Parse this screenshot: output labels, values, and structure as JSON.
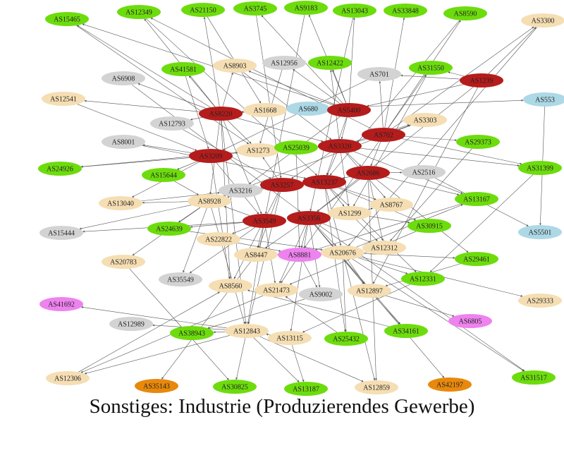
{
  "caption": "Sonstiges: Industrie (Produzierendes Gewerbe)",
  "colors": {
    "darkred": "#b51c1c",
    "green": "#6ddc0d",
    "tan": "#f5deb3",
    "gray": "#d3d3d3",
    "lightblue": "#add8e6",
    "violet": "#ee82ee",
    "orange": "#e8890c",
    "edge": "#555555"
  },
  "nodes": [
    {
      "id": "AS15465",
      "c": "green"
    },
    {
      "id": "AS12349",
      "c": "green"
    },
    {
      "id": "AS21150",
      "c": "green"
    },
    {
      "id": "AS3745",
      "c": "green"
    },
    {
      "id": "AS9183",
      "c": "green"
    },
    {
      "id": "AS13043",
      "c": "green"
    },
    {
      "id": "AS33848",
      "c": "green"
    },
    {
      "id": "AS8590",
      "c": "green"
    },
    {
      "id": "AS3300",
      "c": "tan"
    },
    {
      "id": "AS41581",
      "c": "green"
    },
    {
      "id": "AS8903",
      "c": "tan"
    },
    {
      "id": "AS12956",
      "c": "gray"
    },
    {
      "id": "AS12422",
      "c": "green"
    },
    {
      "id": "AS701",
      "c": "gray"
    },
    {
      "id": "AS31550",
      "c": "green"
    },
    {
      "id": "AS6908",
      "c": "gray"
    },
    {
      "id": "AS1239",
      "c": "darkred"
    },
    {
      "id": "AS12541",
      "c": "tan"
    },
    {
      "id": "AS8220",
      "c": "darkred"
    },
    {
      "id": "AS1668",
      "c": "tan"
    },
    {
      "id": "AS680",
      "c": "lightblue"
    },
    {
      "id": "AS5400",
      "c": "darkred"
    },
    {
      "id": "AS553",
      "c": "lightblue"
    },
    {
      "id": "AS12793",
      "c": "gray"
    },
    {
      "id": "AS3303",
      "c": "tan"
    },
    {
      "id": "AS702",
      "c": "darkred"
    },
    {
      "id": "AS8001",
      "c": "gray"
    },
    {
      "id": "AS29373",
      "c": "green"
    },
    {
      "id": "AS1273",
      "c": "tan"
    },
    {
      "id": "AS25039",
      "c": "green"
    },
    {
      "id": "AS3320",
      "c": "darkred"
    },
    {
      "id": "AS3209",
      "c": "darkred"
    },
    {
      "id": "AS24926",
      "c": "green"
    },
    {
      "id": "AS31399",
      "c": "green"
    },
    {
      "id": "AS15644",
      "c": "green"
    },
    {
      "id": "AS2686",
      "c": "darkred"
    },
    {
      "id": "AS2516",
      "c": "gray"
    },
    {
      "id": "AS3257",
      "c": "darkred"
    },
    {
      "id": "AS13237",
      "c": "darkred"
    },
    {
      "id": "AS3216",
      "c": "gray"
    },
    {
      "id": "AS13040",
      "c": "tan"
    },
    {
      "id": "AS8928",
      "c": "tan"
    },
    {
      "id": "AS13167",
      "c": "green"
    },
    {
      "id": "AS8767",
      "c": "tan"
    },
    {
      "id": "AS1299",
      "c": "tan"
    },
    {
      "id": "AS5501",
      "c": "lightblue"
    },
    {
      "id": "AS15444",
      "c": "gray"
    },
    {
      "id": "AS3549",
      "c": "darkred"
    },
    {
      "id": "AS3356",
      "c": "darkred"
    },
    {
      "id": "AS24639",
      "c": "green"
    },
    {
      "id": "AS30915",
      "c": "green"
    },
    {
      "id": "AS22822",
      "c": "tan"
    },
    {
      "id": "AS12312",
      "c": "tan"
    },
    {
      "id": "AS8447",
      "c": "tan"
    },
    {
      "id": "AS8881",
      "c": "violet"
    },
    {
      "id": "AS20676",
      "c": "tan"
    },
    {
      "id": "AS20783",
      "c": "tan"
    },
    {
      "id": "AS29461",
      "c": "green"
    },
    {
      "id": "AS35549",
      "c": "gray"
    },
    {
      "id": "AS12331",
      "c": "green"
    },
    {
      "id": "AS8560",
      "c": "tan"
    },
    {
      "id": "AS21473",
      "c": "tan"
    },
    {
      "id": "AS9002",
      "c": "gray"
    },
    {
      "id": "AS12897",
      "c": "tan"
    },
    {
      "id": "AS29333",
      "c": "tan"
    },
    {
      "id": "AS41692",
      "c": "violet"
    },
    {
      "id": "AS6805",
      "c": "violet"
    },
    {
      "id": "AS12989",
      "c": "gray"
    },
    {
      "id": "AS38943",
      "c": "green"
    },
    {
      "id": "AS12843",
      "c": "tan"
    },
    {
      "id": "AS13115",
      "c": "tan"
    },
    {
      "id": "AS34161",
      "c": "green"
    },
    {
      "id": "AS25432",
      "c": "green"
    },
    {
      "id": "AS12306",
      "c": "tan"
    },
    {
      "id": "AS35143",
      "c": "orange"
    },
    {
      "id": "AS30825",
      "c": "green"
    },
    {
      "id": "AS13187",
      "c": "green"
    },
    {
      "id": "AS12859",
      "c": "tan"
    },
    {
      "id": "AS42197",
      "c": "orange"
    },
    {
      "id": "AS31517",
      "c": "green"
    }
  ],
  "edges": [
    [
      "AS8220",
      "AS15465"
    ],
    [
      "AS8220",
      "AS12349"
    ],
    [
      "AS8220",
      "AS21150"
    ],
    [
      "AS8220",
      "AS41581"
    ],
    [
      "AS8220",
      "AS8903"
    ],
    [
      "AS8220",
      "AS12541"
    ],
    [
      "AS8220",
      "AS6908"
    ],
    [
      "AS8220",
      "AS12793"
    ],
    [
      "AS8220",
      "AS1668"
    ],
    [
      "AS8220",
      "AS680"
    ],
    [
      "AS8220",
      "AS3320"
    ],
    [
      "AS8220",
      "AS1273"
    ],
    [
      "AS8220",
      "AS8928"
    ],
    [
      "AS8220",
      "AS3549"
    ],
    [
      "AS8220",
      "AS12843"
    ],
    [
      "AS8220",
      "AS8560"
    ],
    [
      "AS5400",
      "AS3745"
    ],
    [
      "AS5400",
      "AS9183"
    ],
    [
      "AS5400",
      "AS13043"
    ],
    [
      "AS5400",
      "AS12956"
    ],
    [
      "AS5400",
      "AS12422"
    ],
    [
      "AS5400",
      "AS680"
    ],
    [
      "AS5400",
      "AS3320"
    ],
    [
      "AS5400",
      "AS13237"
    ],
    [
      "AS5400",
      "AS8903"
    ],
    [
      "AS5400",
      "AS15465"
    ],
    [
      "AS5400",
      "AS3216"
    ],
    [
      "AS702",
      "AS33848"
    ],
    [
      "AS702",
      "AS8590"
    ],
    [
      "AS702",
      "AS3300"
    ],
    [
      "AS702",
      "AS701"
    ],
    [
      "AS702",
      "AS31550"
    ],
    [
      "AS702",
      "AS3303"
    ],
    [
      "AS702",
      "AS29373"
    ],
    [
      "AS702",
      "AS3320"
    ],
    [
      "AS702",
      "AS2686"
    ],
    [
      "AS702",
      "AS12349"
    ],
    [
      "AS702",
      "AS8881"
    ],
    [
      "AS702",
      "AS31399"
    ],
    [
      "AS1239",
      "AS701"
    ],
    [
      "AS1239",
      "AS31550"
    ],
    [
      "AS1239",
      "AS5400"
    ],
    [
      "AS1239",
      "AS3300"
    ],
    [
      "AS1239",
      "AS3356"
    ],
    [
      "AS1239",
      "AS12897"
    ],
    [
      "AS3320",
      "AS12422"
    ],
    [
      "AS3320",
      "AS1273"
    ],
    [
      "AS3320",
      "AS25039"
    ],
    [
      "AS3320",
      "AS3257"
    ],
    [
      "AS3320",
      "AS13237"
    ],
    [
      "AS3320",
      "AS2686"
    ],
    [
      "AS3320",
      "AS8767"
    ],
    [
      "AS3320",
      "AS1299"
    ],
    [
      "AS3320",
      "AS3303"
    ],
    [
      "AS3320",
      "AS31399"
    ],
    [
      "AS3320",
      "AS13167"
    ],
    [
      "AS3209",
      "AS1273"
    ],
    [
      "AS3209",
      "AS8001"
    ],
    [
      "AS3209",
      "AS24926"
    ],
    [
      "AS3209",
      "AS15644"
    ],
    [
      "AS3209",
      "AS3549"
    ],
    [
      "AS3209",
      "AS8560"
    ],
    [
      "AS3209",
      "AS13040"
    ],
    [
      "AS2686",
      "AS13237"
    ],
    [
      "AS2686",
      "AS2516"
    ],
    [
      "AS2686",
      "AS3356"
    ],
    [
      "AS2686",
      "AS13167"
    ],
    [
      "AS2686",
      "AS29461"
    ],
    [
      "AS2686",
      "AS12312"
    ],
    [
      "AS2686",
      "AS12859"
    ],
    [
      "AS3257",
      "AS3216"
    ],
    [
      "AS3257",
      "AS13237"
    ],
    [
      "AS3257",
      "AS1273"
    ],
    [
      "AS3257",
      "AS8447"
    ],
    [
      "AS3257",
      "AS8928"
    ],
    [
      "AS3257",
      "AS12843"
    ],
    [
      "AS3257",
      "AS8560"
    ],
    [
      "AS13237",
      "AS1299"
    ],
    [
      "AS13237",
      "AS8767"
    ],
    [
      "AS13237",
      "AS20676"
    ],
    [
      "AS13237",
      "AS30915"
    ],
    [
      "AS13237",
      "AS25432"
    ],
    [
      "AS13237",
      "AS12331"
    ],
    [
      "AS3549",
      "AS8928"
    ],
    [
      "AS3549",
      "AS24639"
    ],
    [
      "AS3549",
      "AS22822"
    ],
    [
      "AS3549",
      "AS15444"
    ],
    [
      "AS3549",
      "AS8447"
    ],
    [
      "AS3549",
      "AS21473"
    ],
    [
      "AS3549",
      "AS35549"
    ],
    [
      "AS3549",
      "AS12843"
    ],
    [
      "AS3356",
      "AS8881"
    ],
    [
      "AS3356",
      "AS1299"
    ],
    [
      "AS3356",
      "AS20676"
    ],
    [
      "AS3356",
      "AS12312"
    ],
    [
      "AS3356",
      "AS9002"
    ],
    [
      "AS3356",
      "AS12897"
    ],
    [
      "AS3356",
      "AS8447"
    ],
    [
      "AS3356",
      "AS34161"
    ],
    [
      "AS3356",
      "AS31517"
    ],
    [
      "AS3356",
      "AS13115"
    ],
    [
      "AS3356",
      "AS21473"
    ],
    [
      "AS3356",
      "AS42197"
    ],
    [
      "AS8928",
      "AS13040"
    ],
    [
      "AS8928",
      "AS15444"
    ],
    [
      "AS8928",
      "AS20783"
    ],
    [
      "AS8928",
      "AS35549"
    ],
    [
      "AS8928",
      "AS24639"
    ],
    [
      "AS8928",
      "AS12843"
    ],
    [
      "AS20676",
      "AS29461"
    ],
    [
      "AS20676",
      "AS29333"
    ],
    [
      "AS20676",
      "AS12331"
    ],
    [
      "AS20676",
      "AS12897"
    ],
    [
      "AS20676",
      "AS25432"
    ],
    [
      "AS20676",
      "AS12859"
    ],
    [
      "AS20676",
      "AS13167"
    ],
    [
      "AS20676",
      "AS31517"
    ],
    [
      "AS8881",
      "AS20676"
    ],
    [
      "AS8881",
      "AS8447"
    ],
    [
      "AS8881",
      "AS21473"
    ],
    [
      "AS8881",
      "AS9002"
    ],
    [
      "AS12843",
      "AS12306"
    ],
    [
      "AS12843",
      "AS38943"
    ],
    [
      "AS12843",
      "AS12989"
    ],
    [
      "AS12843",
      "AS30825"
    ],
    [
      "AS12843",
      "AS12859"
    ],
    [
      "AS12843",
      "AS13187"
    ],
    [
      "AS12843",
      "AS41692"
    ],
    [
      "AS12897",
      "AS6805"
    ],
    [
      "AS12897",
      "AS34161"
    ],
    [
      "AS1299",
      "AS30915"
    ],
    [
      "AS1299",
      "AS12312"
    ],
    [
      "AS1299",
      "AS8767"
    ],
    [
      "AS680",
      "AS553"
    ],
    [
      "AS553",
      "AS5501"
    ],
    [
      "AS2516",
      "AS5501"
    ],
    [
      "AS13115",
      "AS13187"
    ],
    [
      "AS13115",
      "AS12843"
    ],
    [
      "AS8447",
      "AS35143"
    ],
    [
      "AS12306",
      "AS8560"
    ],
    [
      "AS20783",
      "AS30825"
    ],
    [
      "AS1273",
      "AS24926"
    ],
    [
      "AS3303",
      "AS8928"
    ],
    [
      "AS701",
      "AS3209"
    ],
    [
      "AS12956",
      "AS1273"
    ],
    [
      "AS8903",
      "AS3320"
    ],
    [
      "AS41581",
      "AS3209"
    ],
    [
      "AS3745",
      "AS3257"
    ],
    [
      "AS9183",
      "AS3549"
    ],
    [
      "AS13043",
      "AS3356"
    ],
    [
      "AS8590",
      "AS13237"
    ],
    [
      "AS21150",
      "AS1668"
    ],
    [
      "AS15465",
      "AS1273"
    ],
    [
      "AS12349",
      "AS13237"
    ],
    [
      "AS25039",
      "AS8881"
    ],
    [
      "AS15644",
      "AS8928"
    ],
    [
      "AS13040",
      "AS3216"
    ],
    [
      "AS22822",
      "AS8881"
    ],
    [
      "AS24639",
      "AS20676"
    ],
    [
      "AS12793",
      "AS3257"
    ],
    [
      "AS6908",
      "AS3356"
    ],
    [
      "AS12541",
      "AS3209"
    ],
    [
      "AS8001",
      "AS13237"
    ],
    [
      "AS3300",
      "AS20676"
    ],
    [
      "AS31550",
      "AS1299"
    ],
    [
      "AS29373",
      "AS12312"
    ],
    [
      "AS31399",
      "AS12331"
    ],
    [
      "AS13167",
      "AS8881"
    ],
    [
      "AS30915",
      "AS21473"
    ],
    [
      "AS29461",
      "AS12897"
    ],
    [
      "AS12331",
      "AS13115"
    ],
    [
      "AS34161",
      "AS8560"
    ],
    [
      "AS25432",
      "AS21473"
    ],
    [
      "AS9002",
      "AS38943"
    ],
    [
      "AS21473",
      "AS12306"
    ]
  ]
}
